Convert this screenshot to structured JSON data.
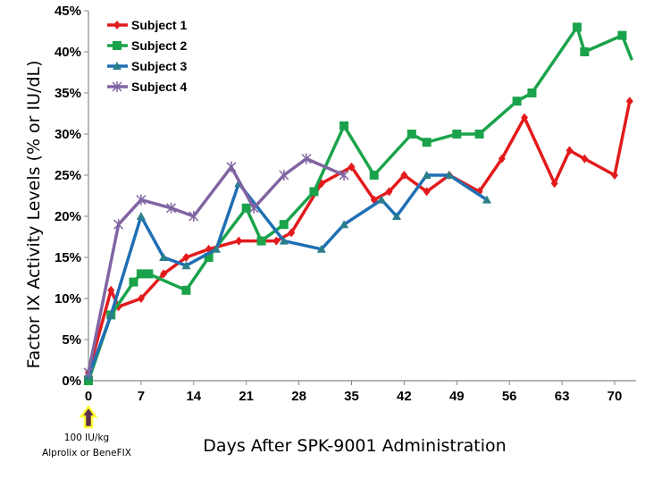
{
  "chart_data": {
    "type": "line",
    "title": "",
    "xlabel": "Days After SPK-9001 Administration",
    "ylabel": "Factor IX Activity Levels (% or IU/dL)",
    "xlim": [
      0,
      72
    ],
    "ylim": [
      0,
      45
    ],
    "x_ticks": [
      "0",
      "7",
      "14",
      "21",
      "28",
      "35",
      "42",
      "49",
      "56",
      "63",
      "70"
    ],
    "y_ticks": [
      "0%",
      "5%",
      "10%",
      "15%",
      "20%",
      "25%",
      "30%",
      "35%",
      "40%",
      "45%"
    ],
    "grid": false,
    "legend_position": "top-left",
    "annotation": {
      "line1": "100 IU/kg",
      "line2": "Alprolix or BeneFIX",
      "arrow_at_day": 0,
      "arrow_color": "#ffff66"
    },
    "series": [
      {
        "name": "Subject 1",
        "color": "#e31a1c",
        "marker": "diamond",
        "points": [
          [
            0,
            1
          ],
          [
            3,
            11
          ],
          [
            4,
            9
          ],
          [
            7,
            10
          ],
          [
            10,
            13
          ],
          [
            13,
            15
          ],
          [
            16,
            16
          ],
          [
            20,
            17
          ],
          [
            23,
            17
          ],
          [
            25,
            17
          ],
          [
            27,
            18
          ],
          [
            31,
            24
          ],
          [
            35,
            26
          ],
          [
            38,
            22
          ],
          [
            40,
            23
          ],
          [
            42,
            25
          ],
          [
            45,
            23
          ],
          [
            48,
            25
          ],
          [
            52,
            23
          ],
          [
            55,
            27
          ],
          [
            58,
            32
          ],
          [
            62,
            24
          ],
          [
            64,
            28
          ],
          [
            66,
            27
          ],
          [
            70,
            25
          ],
          [
            72,
            34
          ]
        ]
      },
      {
        "name": "Subject 2",
        "color": "#1aa34a",
        "marker": "square",
        "points": [
          [
            0,
            0
          ],
          [
            3,
            8
          ],
          [
            6,
            12
          ],
          [
            7,
            13
          ],
          [
            8,
            13
          ],
          [
            13,
            11
          ],
          [
            16,
            15
          ],
          [
            21,
            21
          ],
          [
            23,
            17
          ],
          [
            26,
            19
          ],
          [
            30,
            23
          ],
          [
            34,
            31
          ],
          [
            38,
            25
          ],
          [
            43,
            30
          ],
          [
            45,
            29
          ],
          [
            49,
            30
          ],
          [
            52,
            30
          ],
          [
            57,
            34
          ],
          [
            59,
            35
          ],
          [
            65,
            43
          ],
          [
            66,
            40
          ],
          [
            71,
            42
          ],
          [
            72.3,
            39
          ]
        ]
      },
      {
        "name": "Subject 3",
        "color": "#1f6fb4",
        "marker": "triangle",
        "points": [
          [
            0,
            0.5
          ],
          [
            3,
            8
          ],
          [
            7,
            20
          ],
          [
            10,
            15
          ],
          [
            13,
            14
          ],
          [
            17,
            16
          ],
          [
            20,
            24
          ],
          [
            26,
            17
          ],
          [
            31,
            16
          ],
          [
            34,
            19
          ],
          [
            39,
            22
          ],
          [
            41,
            20
          ],
          [
            45,
            25
          ],
          [
            48,
            25
          ],
          [
            53,
            22
          ]
        ]
      },
      {
        "name": "Subject 4",
        "color": "#8064a2",
        "marker": "x",
        "points": [
          [
            0,
            1
          ],
          [
            4,
            19
          ],
          [
            7,
            22
          ],
          [
            11,
            21
          ],
          [
            14,
            20
          ],
          [
            19,
            26
          ],
          [
            22,
            21
          ],
          [
            26,
            25
          ],
          [
            29,
            27
          ],
          [
            34,
            25
          ]
        ]
      }
    ]
  }
}
